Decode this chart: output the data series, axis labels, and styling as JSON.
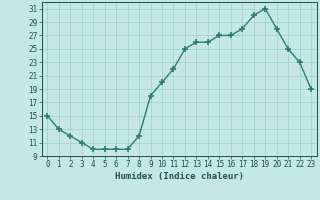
{
  "xlabel": "Humidex (Indice chaleur)",
  "x": [
    0,
    1,
    2,
    3,
    4,
    5,
    6,
    7,
    8,
    9,
    10,
    11,
    12,
    13,
    14,
    15,
    16,
    17,
    18,
    19,
    20,
    21,
    22,
    23
  ],
  "y": [
    15,
    13,
    12,
    11,
    10,
    10,
    10,
    10,
    12,
    18,
    20,
    22,
    25,
    26,
    26,
    27,
    27,
    28,
    30,
    31,
    28,
    25,
    23,
    19
  ],
  "line_color": "#2d7d6e",
  "marker": "+",
  "marker_size": 4,
  "marker_lw": 1.2,
  "line_width": 1.0,
  "bg_color": "#c5e8e5",
  "grid_color": "#9ecfcb",
  "ylim": [
    9,
    32
  ],
  "yticks": [
    9,
    11,
    13,
    15,
    17,
    19,
    21,
    23,
    25,
    27,
    29,
    31
  ],
  "xticks": [
    0,
    1,
    2,
    3,
    4,
    5,
    6,
    7,
    8,
    9,
    10,
    11,
    12,
    13,
    14,
    15,
    16,
    17,
    18,
    19,
    20,
    21,
    22,
    23
  ],
  "font_color": "#1e5050",
  "xlabel_fontsize": 6.5,
  "tick_fontsize": 5.5
}
